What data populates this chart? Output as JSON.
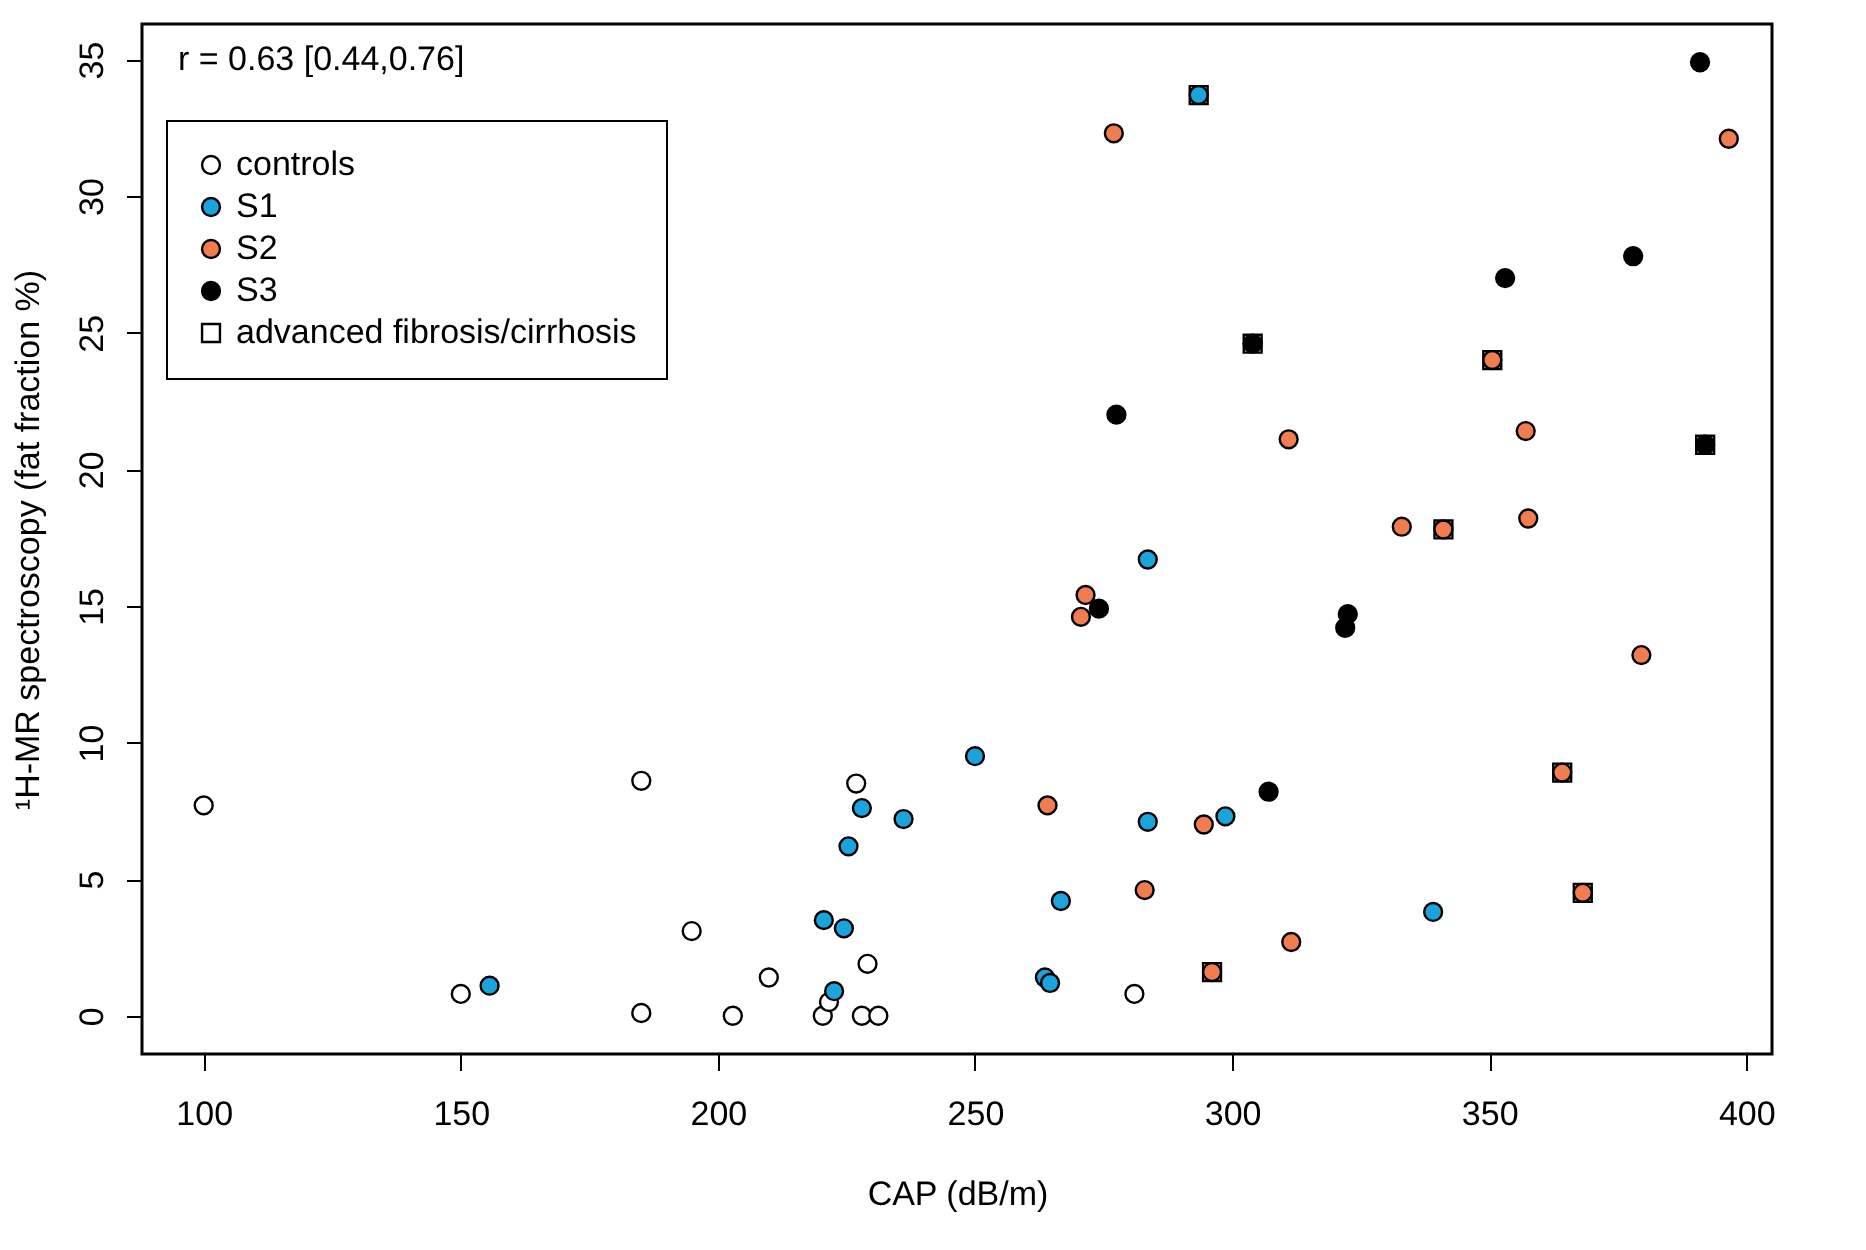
{
  "chart_data": {
    "type": "scatter",
    "xlabel": "CAP (dB/m)",
    "ylabel": "¹H-MR spectroscopy (fat fraction %)",
    "annotations": [
      "r = 0.63  [0.44,0.76]"
    ],
    "xlim": [
      88,
      405
    ],
    "xticks": [
      100,
      150,
      200,
      250,
      300,
      350,
      400
    ],
    "ylim": [
      -1.4,
      36.3
    ],
    "yticks": [
      0,
      5,
      10,
      15,
      20,
      25,
      30,
      35
    ],
    "grid": false,
    "legend": "top left",
    "series": [
      {
        "name": "controls",
        "color": "#ffffff",
        "marker": "circle",
        "x": [
          100,
          150,
          185.1,
          185.1,
          194.9,
          202.9,
          209.9,
          220.4,
          221.6,
          226.9,
          229.1,
          228,
          231.2,
          281
        ],
        "values": [
          7.7,
          0.8,
          8.6,
          0.1,
          3.1,
          0,
          1.4,
          0,
          0.5,
          8.5,
          1.9,
          0,
          0,
          0.8
        ]
      },
      {
        "name": "S1",
        "color": "#1ba3dc",
        "marker": "circle",
        "x": [
          155.6,
          220.6,
          222.6,
          224.5,
          225.4,
          228,
          236.1,
          250,
          263.6,
          264.6,
          266.7,
          283.6,
          283.6,
          293.5,
          298.7,
          339.1
        ],
        "values": [
          1.1,
          3.5,
          0.9,
          3.2,
          6.2,
          7.6,
          7.2,
          9.5,
          1.4,
          1.2,
          4.2,
          7.1,
          16.7,
          33.7,
          7.3,
          3.8
        ]
      },
      {
        "name": "S2",
        "color": "#f07c4f",
        "marker": "circle",
        "x": [
          264.1,
          270.6,
          271.5,
          277,
          283,
          294.5,
          296.1,
          311,
          311.5,
          333,
          341.1,
          350.6,
          357.1,
          357.6,
          364.2,
          368.2,
          379.6,
          396.6
        ],
        "values": [
          7.7,
          14.6,
          15.4,
          32.3,
          4.6,
          7,
          1.6,
          21.1,
          2.7,
          17.9,
          17.8,
          24,
          21.4,
          18.2,
          8.9,
          4.5,
          13.2,
          32.1
        ]
      },
      {
        "name": "S3",
        "color": "#000000",
        "marker": "circle",
        "x": [
          274.1,
          277.5,
          304,
          307.1,
          322,
          322.5,
          353.1,
          378,
          391,
          392
        ],
        "values": [
          14.9,
          22,
          24.6,
          8.2,
          14.2,
          14.7,
          27,
          27.8,
          34.9,
          20.9
        ]
      },
      {
        "name": "advanced fibrosis/cirrhosis",
        "color": "#000000",
        "marker": "square",
        "x": [
          293.5,
          304,
          341.1,
          350.6,
          392,
          364.2,
          368.2,
          296.1
        ],
        "values": [
          33.7,
          24.6,
          17.8,
          24,
          20.9,
          8.9,
          4.5,
          1.6
        ]
      }
    ]
  }
}
